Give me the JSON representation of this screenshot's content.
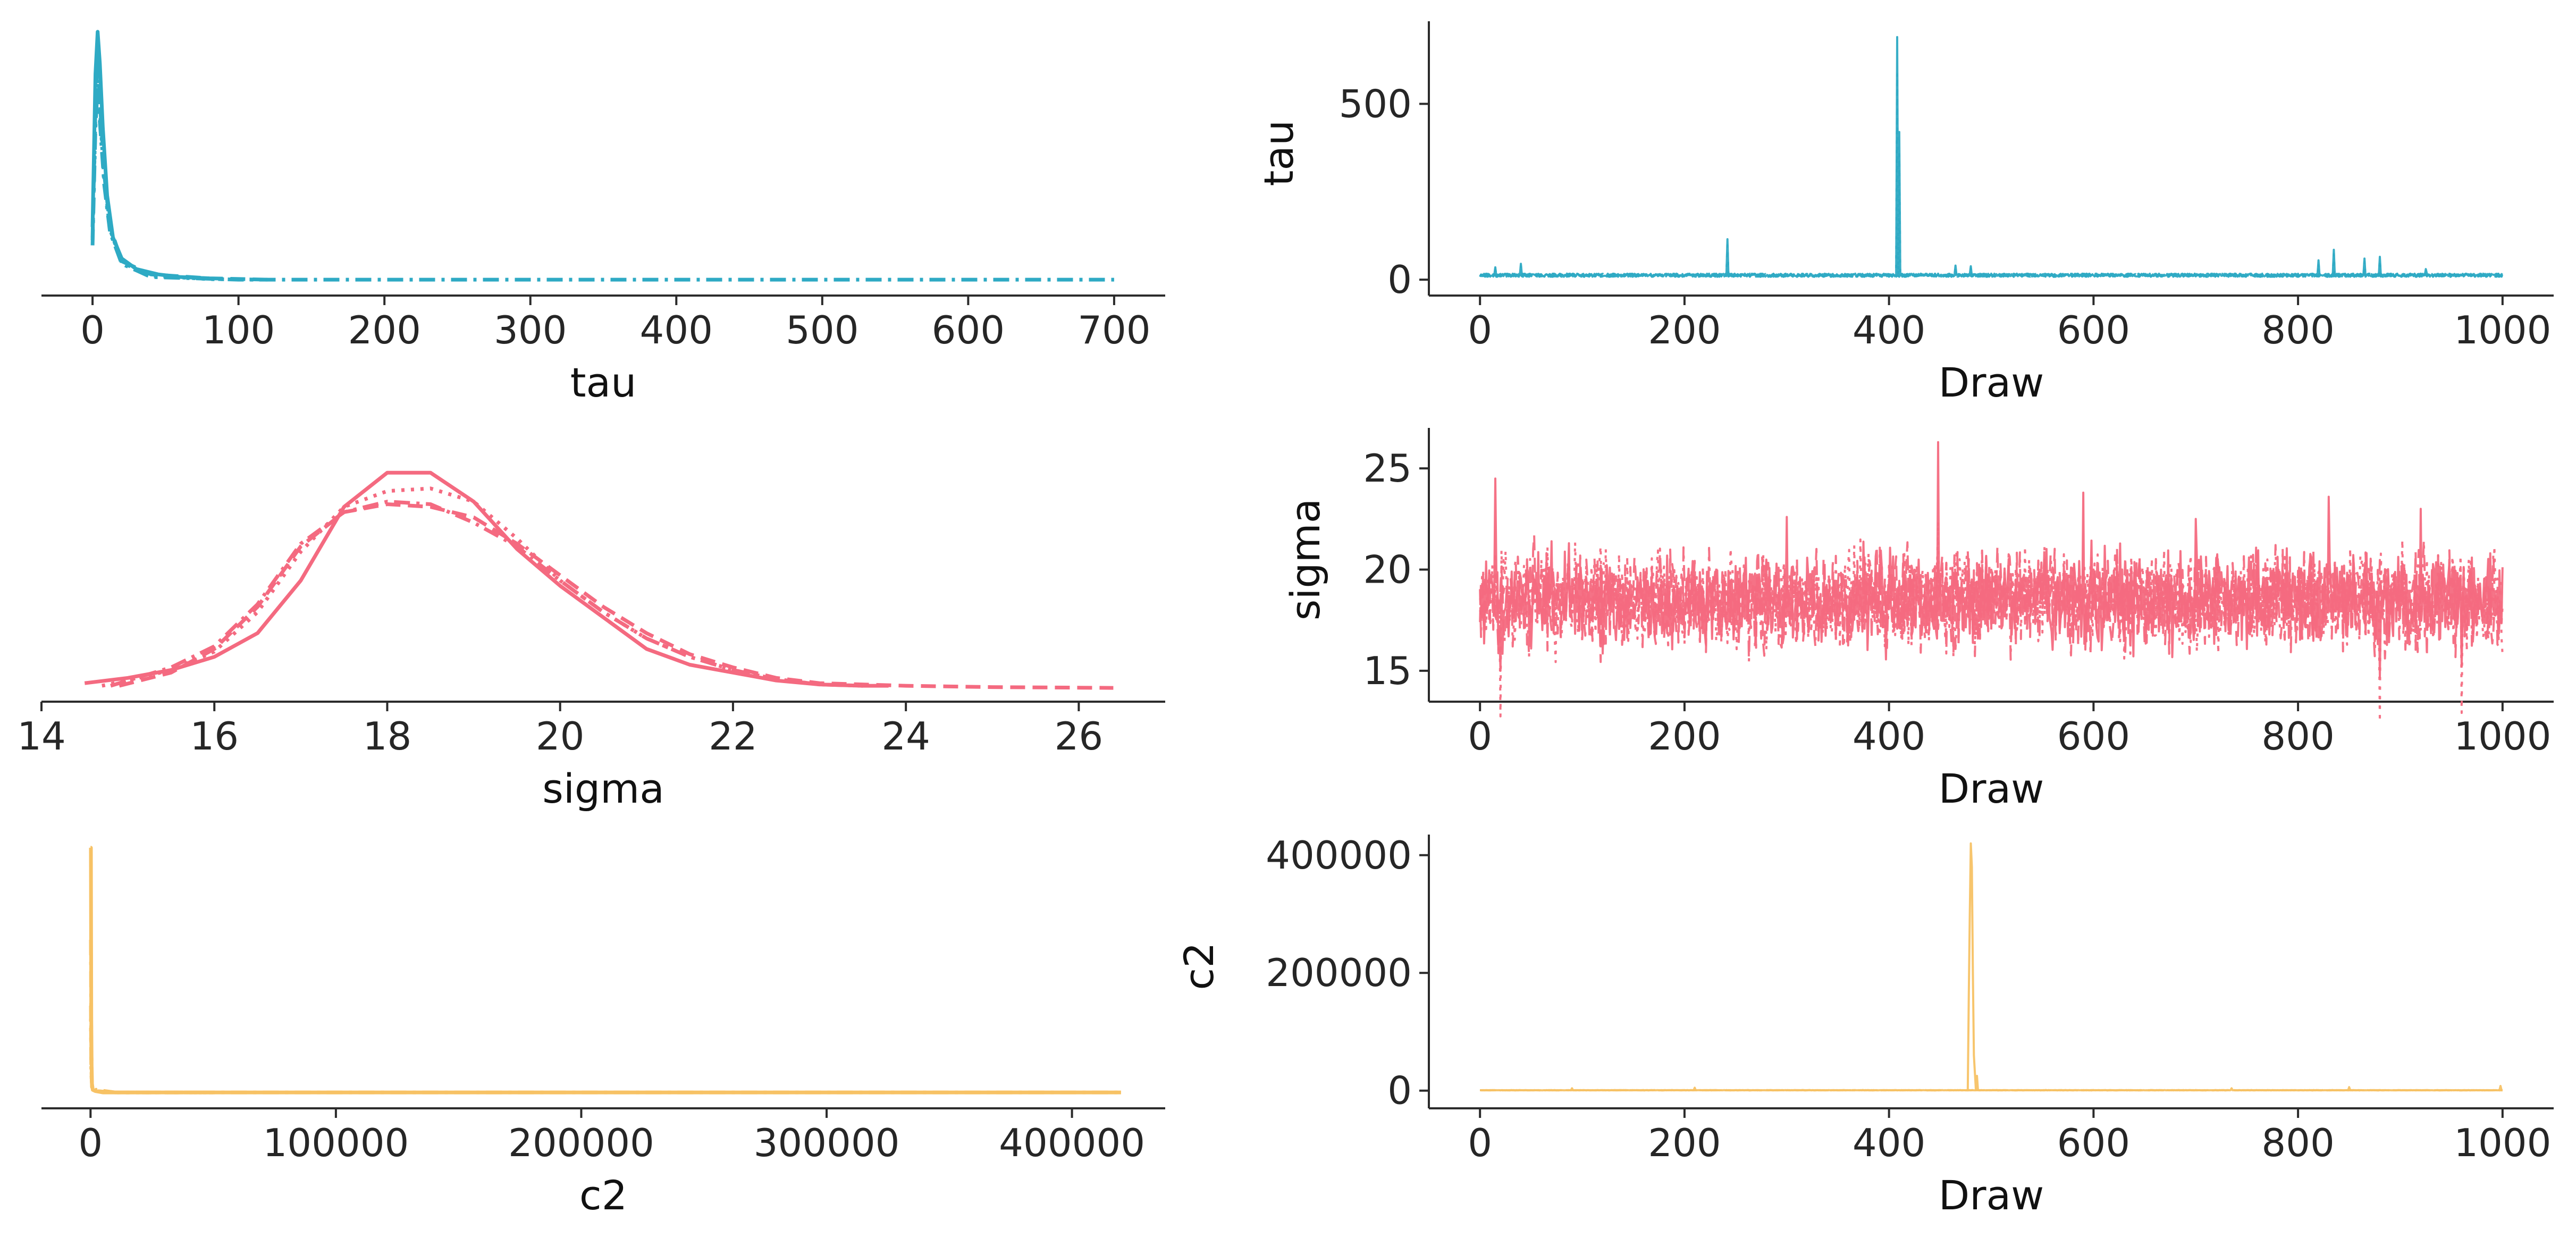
{
  "colors": {
    "tau": "#2eaac4",
    "sigma": "#f46a80",
    "c2": "#f7c265",
    "axis": "#2b2b2b"
  },
  "chart_data": [
    {
      "type": "line",
      "panel": "tau-density",
      "xlabel": "tau",
      "ylabel": "",
      "xlim": [
        -35,
        735
      ],
      "xticks": [
        0,
        100,
        200,
        300,
        400,
        500,
        600,
        700
      ],
      "tick_labels": [
        "0",
        "100",
        "200",
        "300",
        "400",
        "500",
        "600",
        "700"
      ],
      "ylim": [
        0,
        1
      ],
      "grid": false,
      "color": "tau",
      "series": [
        {
          "style": "solid",
          "x": [
            0,
            2,
            3.5,
            5,
            7,
            10,
            14,
            20,
            30,
            45,
            60,
            80
          ],
          "y": [
            0.22,
            0.8,
            0.96,
            0.84,
            0.6,
            0.34,
            0.18,
            0.1,
            0.06,
            0.04,
            0.03,
            0.025
          ]
        },
        {
          "style": "dashdot",
          "x": [
            0,
            2,
            3.5,
            5,
            8,
            12,
            20,
            40,
            100,
            300,
            500,
            700
          ],
          "y": [
            0.15,
            0.6,
            0.75,
            0.62,
            0.38,
            0.2,
            0.08,
            0.03,
            0.02,
            0.02,
            0.02,
            0.02
          ]
        },
        {
          "style": "dashed",
          "x": [
            0,
            2,
            3.5,
            5,
            8,
            12,
            20,
            40,
            80,
            120
          ],
          "y": [
            0.18,
            0.68,
            0.85,
            0.7,
            0.42,
            0.22,
            0.09,
            0.04,
            0.025,
            0.02
          ]
        },
        {
          "style": "dotted",
          "x": [
            0,
            2,
            3.5,
            5,
            8,
            12,
            20,
            40,
            80,
            120
          ],
          "y": [
            0.17,
            0.64,
            0.8,
            0.66,
            0.4,
            0.21,
            0.085,
            0.035,
            0.022,
            0.02
          ]
        }
      ]
    },
    {
      "type": "line",
      "panel": "tau-trace",
      "xlabel": "Draw",
      "ylabel": "tau",
      "xlim": [
        -50,
        1050
      ],
      "xticks": [
        0,
        200,
        400,
        600,
        800,
        1000
      ],
      "tick_labels": [
        "0",
        "200",
        "400",
        "600",
        "800",
        "1000"
      ],
      "ylim": [
        -15,
        735
      ],
      "yticks": [
        0,
        500
      ],
      "ytick_labels": [
        "0",
        "500"
      ],
      "grid": false,
      "color": "tau",
      "baseline": 8,
      "noise": 9,
      "n_draws": 1000,
      "spikes": [
        {
          "x": 15,
          "y": 35
        },
        {
          "x": 40,
          "y": 45
        },
        {
          "x": 242,
          "y": 115
        },
        {
          "x": 408,
          "y": 690
        },
        {
          "x": 410,
          "y": 420
        },
        {
          "x": 465,
          "y": 40
        },
        {
          "x": 480,
          "y": 38
        },
        {
          "x": 820,
          "y": 55
        },
        {
          "x": 835,
          "y": 85
        },
        {
          "x": 865,
          "y": 60
        },
        {
          "x": 880,
          "y": 65
        },
        {
          "x": 925,
          "y": 30
        }
      ]
    },
    {
      "type": "line",
      "panel": "sigma-density",
      "xlabel": "sigma",
      "ylabel": "",
      "xlim": [
        14,
        27
      ],
      "xticks": [
        14,
        16,
        18,
        20,
        22,
        24,
        26
      ],
      "tick_labels": [
        "14",
        "16",
        "18",
        "20",
        "22",
        "24",
        "26"
      ],
      "ylim": [
        0,
        1
      ],
      "grid": false,
      "color": "sigma",
      "series": [
        {
          "style": "solid",
          "x": [
            14.5,
            15,
            15.5,
            16,
            16.5,
            17,
            17.5,
            18,
            18.5,
            19,
            19.5,
            20,
            20.5,
            21,
            21.5,
            22,
            22.5,
            23,
            23.5,
            23.8
          ],
          "y": [
            0.03,
            0.05,
            0.08,
            0.13,
            0.22,
            0.42,
            0.7,
            0.83,
            0.83,
            0.72,
            0.54,
            0.4,
            0.28,
            0.16,
            0.1,
            0.07,
            0.04,
            0.025,
            0.02,
            0.02
          ]
        },
        {
          "style": "dotted",
          "x": [
            14.7,
            15,
            15.5,
            16,
            16.5,
            17,
            17.5,
            18,
            18.5,
            19,
            19.5,
            20,
            20.5,
            21,
            21.5,
            22,
            22.5,
            23,
            23.5
          ],
          "y": [
            0.02,
            0.04,
            0.08,
            0.15,
            0.3,
            0.53,
            0.7,
            0.76,
            0.77,
            0.72,
            0.58,
            0.42,
            0.3,
            0.2,
            0.13,
            0.08,
            0.045,
            0.025,
            0.02
          ]
        },
        {
          "style": "dashdot",
          "x": [
            14.8,
            15,
            15.5,
            16,
            16.5,
            17,
            17.5,
            18,
            18.5,
            19,
            19.5,
            20,
            20.5,
            21,
            21.5,
            22,
            22.5,
            23,
            23.5
          ],
          "y": [
            0.02,
            0.04,
            0.09,
            0.17,
            0.33,
            0.56,
            0.68,
            0.72,
            0.71,
            0.64,
            0.55,
            0.42,
            0.3,
            0.2,
            0.13,
            0.08,
            0.045,
            0.025,
            0.02
          ]
        },
        {
          "style": "dashed",
          "x": [
            14.9,
            15.5,
            16,
            16.5,
            17,
            17.5,
            18,
            18.5,
            19,
            19.5,
            20,
            20.5,
            21,
            21.5,
            22,
            22.5,
            23,
            24,
            25,
            26.4
          ],
          "y": [
            0.02,
            0.07,
            0.16,
            0.32,
            0.55,
            0.68,
            0.71,
            0.7,
            0.66,
            0.56,
            0.44,
            0.32,
            0.22,
            0.14,
            0.09,
            0.05,
            0.03,
            0.02,
            0.015,
            0.012
          ]
        }
      ]
    },
    {
      "type": "line",
      "panel": "sigma-trace",
      "xlabel": "Draw",
      "ylabel": "sigma",
      "xlim": [
        -50,
        1050
      ],
      "xticks": [
        0,
        200,
        400,
        600,
        800,
        1000
      ],
      "tick_labels": [
        "0",
        "200",
        "400",
        "600",
        "800",
        "1000"
      ],
      "ylim": [
        14,
        27
      ],
      "yticks": [
        15,
        20,
        25
      ],
      "ytick_labels": [
        "15",
        "20",
        "25"
      ],
      "grid": false,
      "color": "sigma",
      "baseline": 18.5,
      "noise": 1.7,
      "n_draws": 1000,
      "spikes": [
        {
          "x": 15,
          "y": 24.5
        },
        {
          "x": 448,
          "y": 26.3
        },
        {
          "x": 590,
          "y": 23.8
        },
        {
          "x": 830,
          "y": 23.6
        },
        {
          "x": 920,
          "y": 23.0
        },
        {
          "x": 300,
          "y": 22.6
        },
        {
          "x": 700,
          "y": 22.5
        },
        {
          "x": 20,
          "y": 15.0
        },
        {
          "x": 880,
          "y": 14.7
        },
        {
          "x": 960,
          "y": 15.2
        }
      ]
    },
    {
      "type": "line",
      "panel": "c2-density",
      "xlabel": "c2",
      "ylabel": "",
      "xlim": [
        -20000,
        438000
      ],
      "xticks": [
        0,
        100000,
        200000,
        300000,
        400000
      ],
      "tick_labels": [
        "0",
        "100000",
        "200000",
        "300000",
        "400000"
      ],
      "ylim": [
        0,
        1
      ],
      "grid": false,
      "color": "c2",
      "series": [
        {
          "style": "solid",
          "x": [
            0,
            150,
            300,
            500,
            900,
            2000,
            5000,
            20000,
            100000,
            420000
          ],
          "y": [
            0.95,
            0.95,
            0.3,
            0.06,
            0.03,
            0.025,
            0.02,
            0.02,
            0.02,
            0.02
          ]
        },
        {
          "style": "dashdot",
          "x": [
            0,
            150,
            300,
            600,
            2000,
            10000,
            100000,
            420000
          ],
          "y": [
            0.6,
            0.6,
            0.2,
            0.05,
            0.03,
            0.02,
            0.02,
            0.02
          ]
        },
        {
          "style": "dashed",
          "x": [
            0,
            150,
            300,
            600,
            2000,
            10000,
            50000
          ],
          "y": [
            0.35,
            0.35,
            0.12,
            0.04,
            0.025,
            0.02,
            0.02
          ]
        },
        {
          "style": "dotted",
          "x": [
            0,
            150,
            300,
            600,
            2000,
            10000,
            50000
          ],
          "y": [
            0.3,
            0.3,
            0.1,
            0.04,
            0.025,
            0.02,
            0.02
          ]
        }
      ]
    },
    {
      "type": "line",
      "panel": "c2-trace",
      "xlabel": "Draw",
      "ylabel": "c2",
      "xlim": [
        -50,
        1050
      ],
      "xticks": [
        0,
        200,
        400,
        600,
        800,
        1000
      ],
      "tick_labels": [
        "0",
        "200",
        "400",
        "600",
        "800",
        "1000"
      ],
      "ylim": [
        -12000,
        435000
      ],
      "yticks": [
        0,
        200000,
        400000
      ],
      "ytick_labels": [
        "0",
        "200000",
        "400000"
      ],
      "grid": false,
      "color": "c2",
      "baseline": 500,
      "noise": 300,
      "n_draws": 1000,
      "spikes": [
        {
          "x": 478,
          "y": 160000
        },
        {
          "x": 479,
          "y": 300000
        },
        {
          "x": 480,
          "y": 420000
        },
        {
          "x": 481,
          "y": 380000
        },
        {
          "x": 482,
          "y": 200000
        },
        {
          "x": 483,
          "y": 60000
        },
        {
          "x": 484,
          "y": 30000
        },
        {
          "x": 486,
          "y": 25000
        },
        {
          "x": 90,
          "y": 4000
        },
        {
          "x": 210,
          "y": 5000
        },
        {
          "x": 735,
          "y": 4000
        },
        {
          "x": 850,
          "y": 6000
        },
        {
          "x": 998,
          "y": 8000
        }
      ]
    }
  ]
}
